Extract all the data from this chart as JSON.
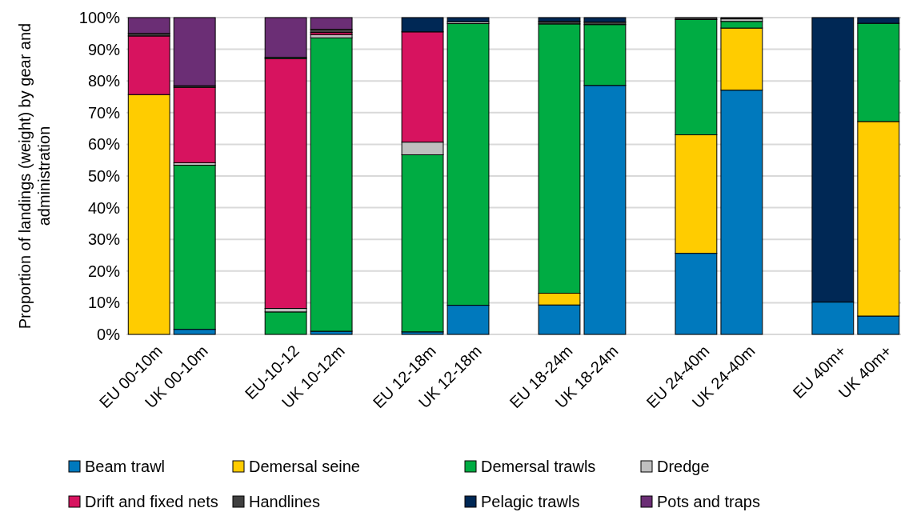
{
  "chart_data": {
    "type": "bar",
    "stacked": true,
    "ylabel": "Proportion of landings (weight) by gear and\nadministration",
    "categories": [
      "EU 00-10m",
      "UK 00-10m",
      null,
      "EU-10-12",
      "UK 10-12m",
      null,
      "EU 12-18m",
      "UK 12-18m",
      null,
      "EU 18-24m",
      "UK 18-24m",
      null,
      "EU 24-40m",
      "UK 24-40m",
      null,
      "EU 40m+",
      "UK 40m+"
    ],
    "series": [
      {
        "name": "Beam trawl",
        "color": "#0079bd",
        "values": [
          0,
          1.6,
          null,
          0,
          1,
          null,
          0.8,
          9.2,
          null,
          9.3,
          78.6,
          null,
          25.6,
          77.1,
          null,
          10.2,
          5.8
        ]
      },
      {
        "name": "Demersal seine",
        "color": "#ffcc00",
        "values": [
          75.7,
          0,
          null,
          0,
          0,
          null,
          0,
          0,
          null,
          3.7,
          0,
          null,
          37.4,
          19.6,
          null,
          0,
          61.4
        ]
      },
      {
        "name": "Demersal trawls",
        "color": "#00ac43",
        "values": [
          0,
          51.8,
          null,
          7.1,
          92.6,
          null,
          55.9,
          88.9,
          null,
          85,
          19.2,
          null,
          36.4,
          2.1,
          null,
          0,
          31
        ]
      },
      {
        "name": "Dredge",
        "color": "#bfbfbf",
        "values": [
          0,
          0.8,
          null,
          1.1,
          1,
          null,
          4,
          0.6,
          null,
          0,
          0,
          null,
          0,
          0.8,
          null,
          0,
          0
        ]
      },
      {
        "name": "Drift and fixed nets",
        "color": "#d7135f",
        "values": [
          18.5,
          23.8,
          null,
          78.8,
          0.7,
          null,
          34.8,
          0,
          null,
          0,
          0,
          null,
          0,
          0,
          null,
          0,
          0
        ]
      },
      {
        "name": "Handlines",
        "color": "#404040",
        "values": [
          0.8,
          0.5,
          null,
          0.5,
          1,
          null,
          0,
          0,
          null,
          0.8,
          0.8,
          null,
          0.6,
          0.4,
          null,
          0,
          0
        ]
      },
      {
        "name": "Pelagic trawls",
        "color": "#002855",
        "values": [
          0,
          0,
          null,
          0,
          0,
          null,
          4.5,
          1.3,
          null,
          1.2,
          1.4,
          null,
          0,
          0,
          null,
          89.8,
          1.8
        ]
      },
      {
        "name": "Pots and traps",
        "color": "#6b2e75",
        "values": [
          5,
          21.5,
          null,
          12.5,
          3.7,
          null,
          0,
          0,
          null,
          0,
          0,
          null,
          0,
          0,
          null,
          0,
          0
        ]
      }
    ],
    "ylim": [
      0,
      100
    ],
    "yticks": [
      {
        "value": 0,
        "label": "0%"
      },
      {
        "value": 10,
        "label": "10%"
      },
      {
        "value": 20,
        "label": "20%"
      },
      {
        "value": 30,
        "label": "30%"
      },
      {
        "value": 40,
        "label": "40%"
      },
      {
        "value": 50,
        "label": "50%"
      },
      {
        "value": 60,
        "label": "60%"
      },
      {
        "value": 70,
        "label": "70%"
      },
      {
        "value": 80,
        "label": "80%"
      },
      {
        "value": 90,
        "label": "90%"
      },
      {
        "value": 100,
        "label": "100%"
      }
    ],
    "grid": "y",
    "legend": "bottom"
  }
}
